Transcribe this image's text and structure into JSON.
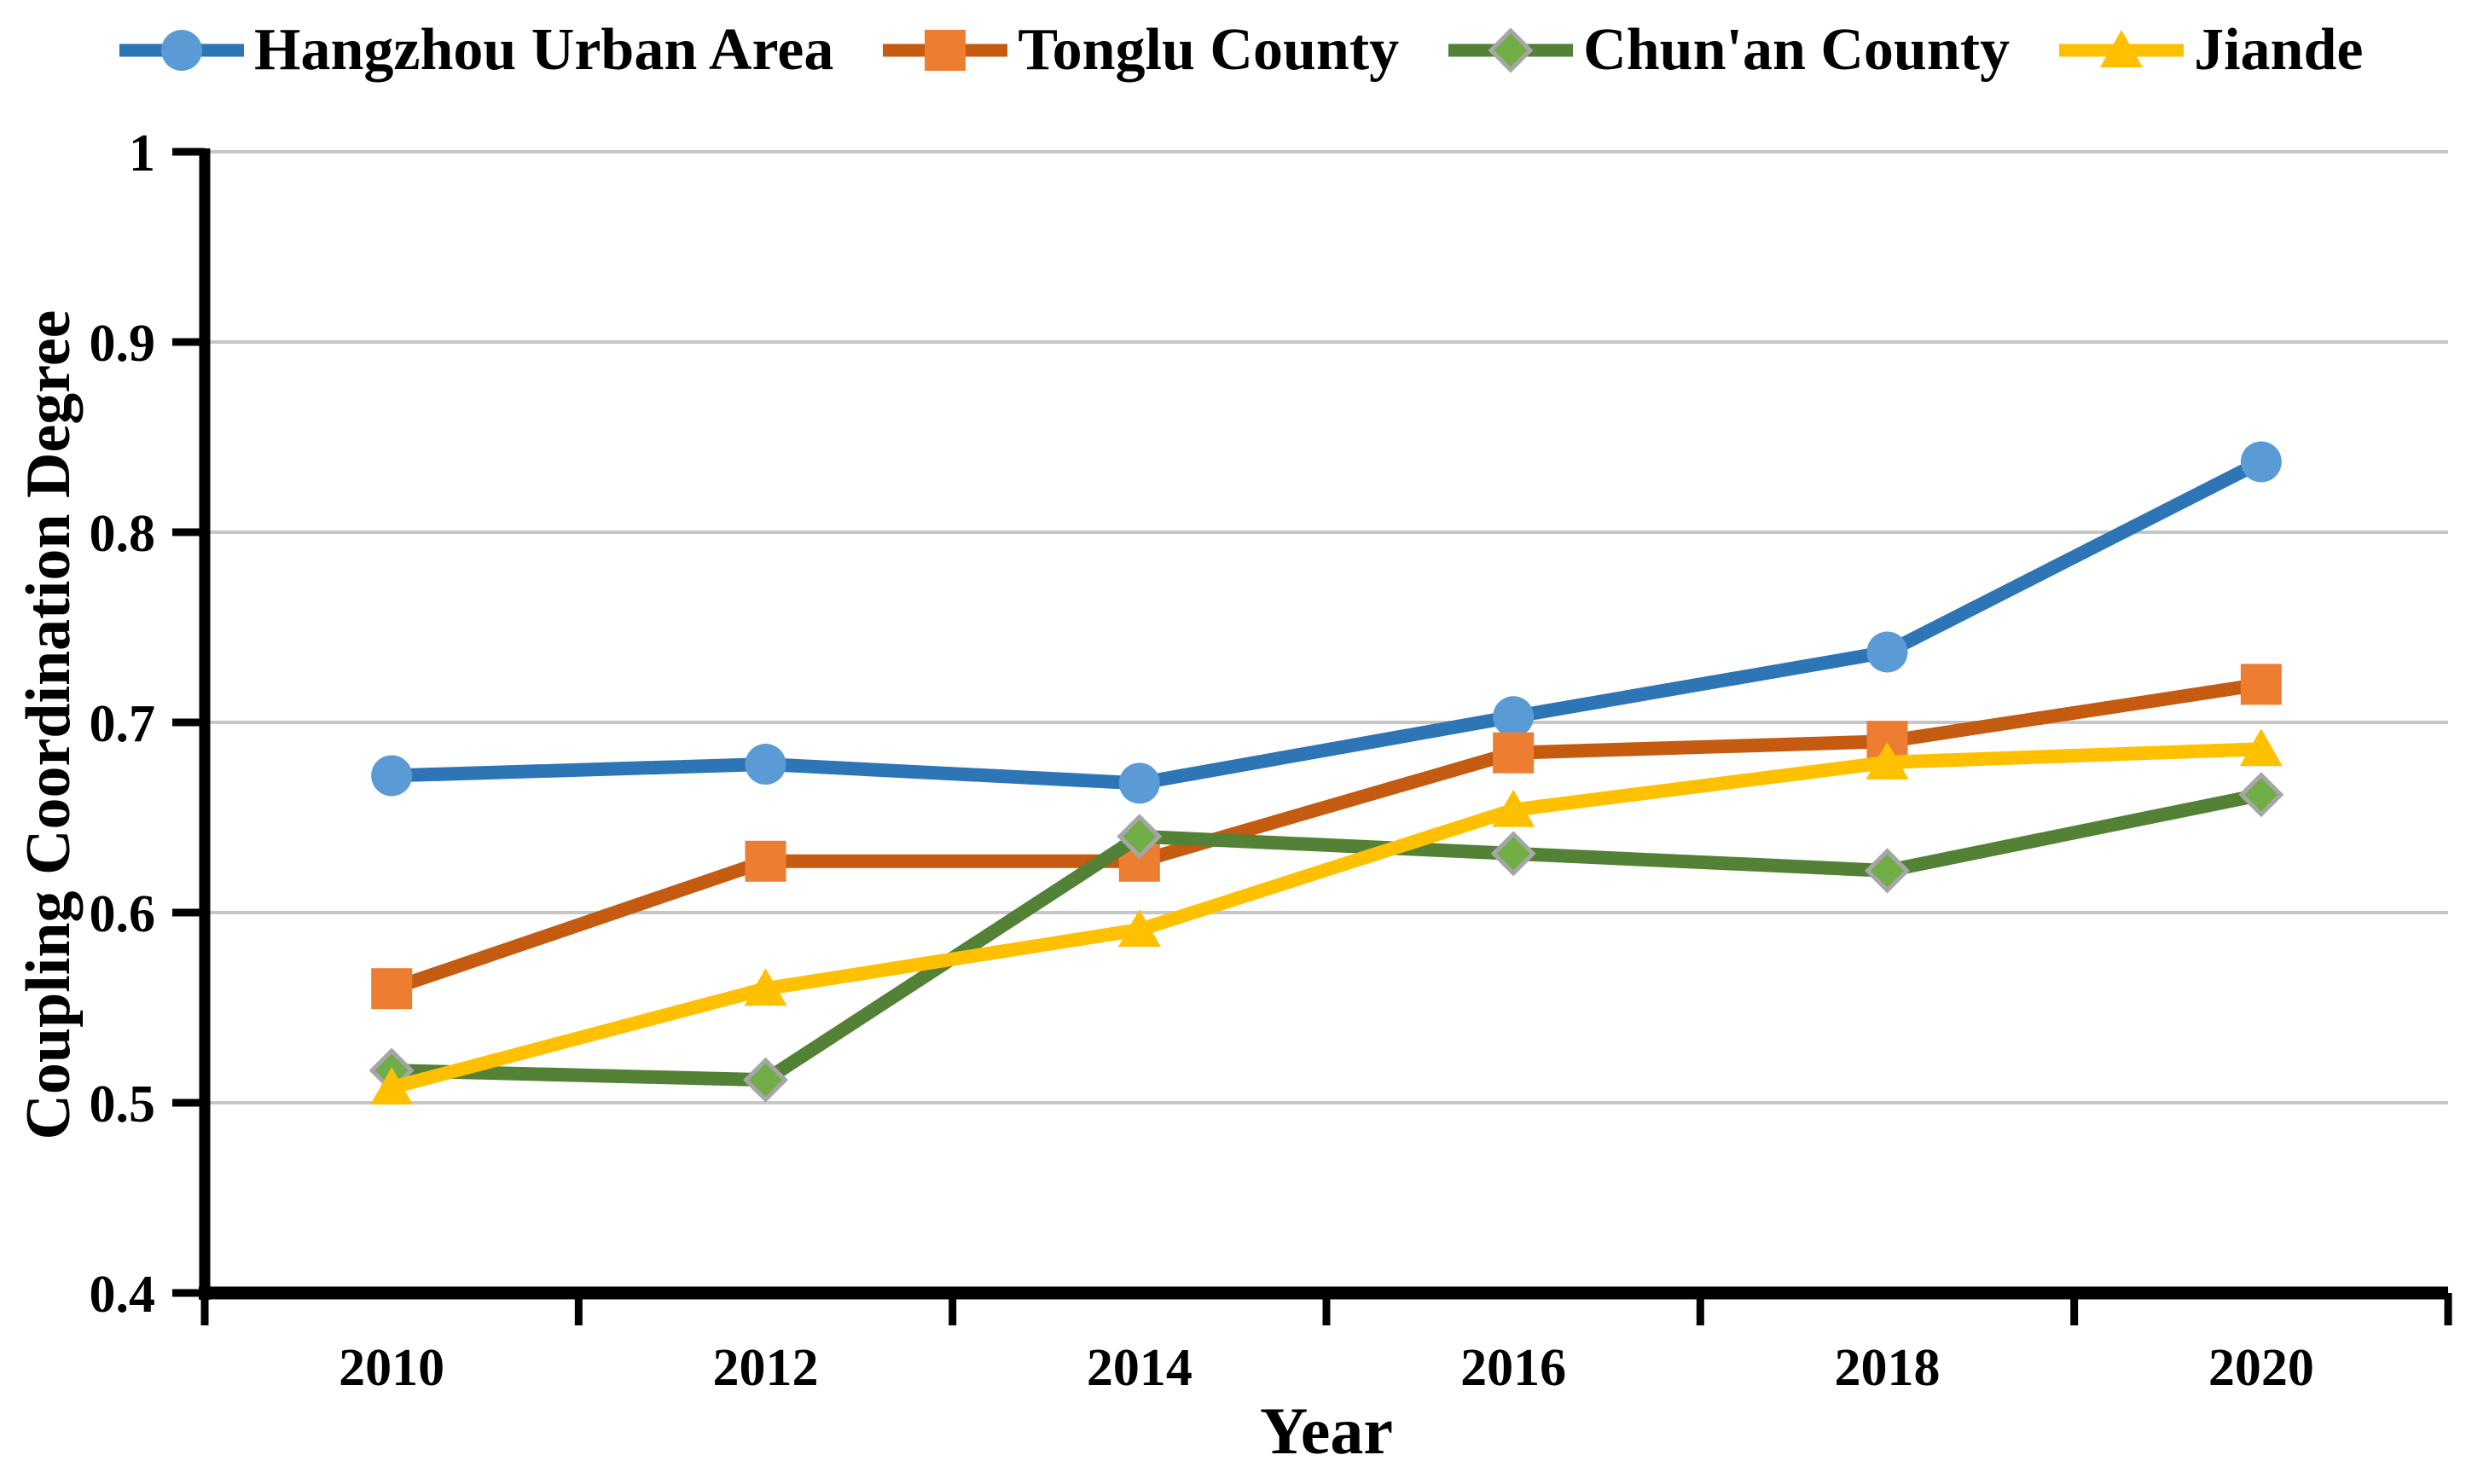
{
  "chart_data": {
    "type": "line",
    "title": "",
    "xlabel": "Year",
    "ylabel": "Coupling Coordination Degree",
    "categories": [
      "2010",
      "2012",
      "2014",
      "2016",
      "2018",
      "2020"
    ],
    "y_tick_labels": [
      "1",
      "0.9",
      "0.8",
      "0.7",
      "0.6",
      "0.5",
      "0.4"
    ],
    "y_tick_values": [
      1.0,
      0.9,
      0.8,
      0.7,
      0.6,
      0.5,
      0.4
    ],
    "ylim": [
      0.4,
      1.0
    ],
    "grid": "horizontal",
    "legend_position": "top",
    "series": [
      {
        "name": "Hangzhou Urban Area",
        "marker": "circle",
        "line_color": "#2E75B6",
        "marker_color": "#5B9BD5",
        "values": [
          0.672,
          0.678,
          0.668,
          0.703,
          0.737,
          0.837
        ]
      },
      {
        "name": "Tonglu County",
        "marker": "square",
        "line_color": "#C55A11",
        "marker_color": "#ED7D31",
        "values": [
          0.56,
          0.627,
          0.627,
          0.684,
          0.69,
          0.72
        ]
      },
      {
        "name": "Chun'an County",
        "marker": "diamond",
        "line_color": "#538135",
        "marker_color": "#70AD47",
        "marker_border": "#A6A6A6",
        "values": [
          0.517,
          0.512,
          0.64,
          0.631,
          0.622,
          0.662
        ]
      },
      {
        "name": "Jiande",
        "marker": "triangle",
        "line_color": "#FFC000",
        "marker_color": "#FFC000",
        "values": [
          0.508,
          0.56,
          0.591,
          0.654,
          0.679,
          0.686
        ]
      }
    ],
    "colors": {
      "gridline": "#C6C6C6",
      "axis": "#000000",
      "text": "#000000",
      "background": "#FFFFFF"
    }
  }
}
